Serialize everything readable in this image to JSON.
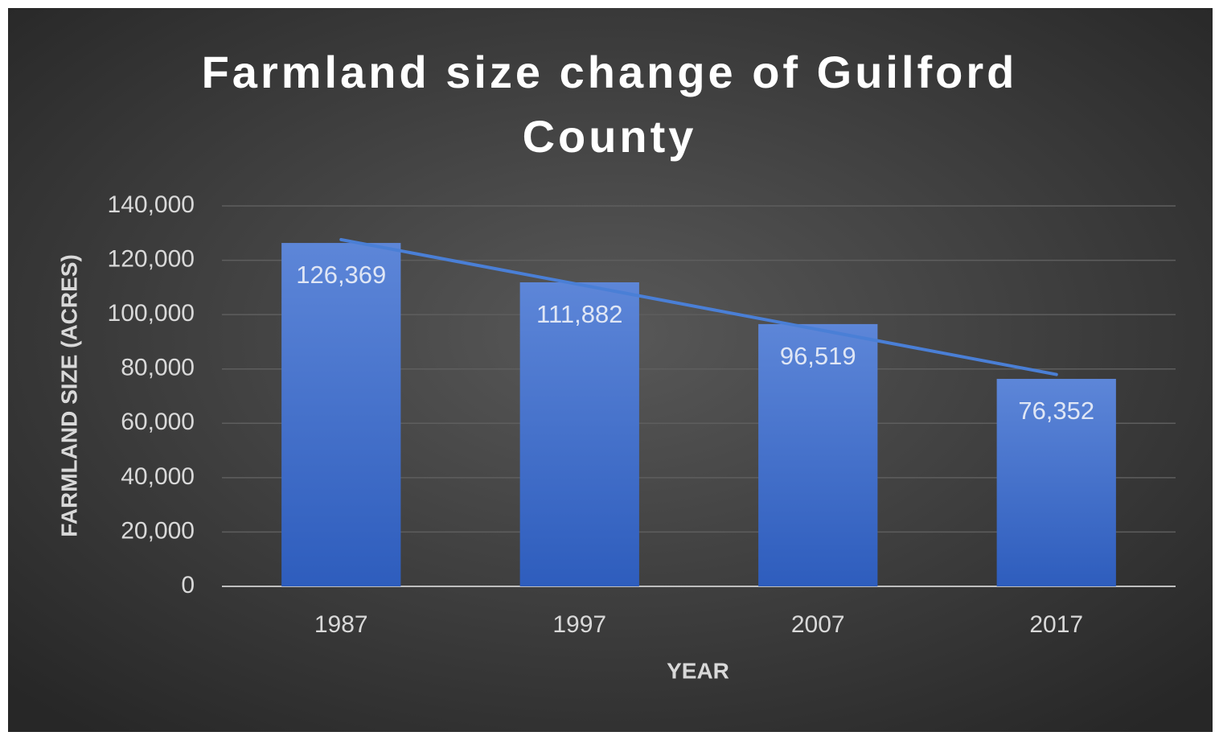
{
  "chart_data": {
    "type": "bar",
    "title": "Farmland size change of Guilford County",
    "x_label": "YEAR",
    "y_label": "FARMLAND SIZE (ACRES)",
    "categories": [
      "1987",
      "1997",
      "2007",
      "2017"
    ],
    "values": [
      126369,
      111882,
      96519,
      76352
    ],
    "value_labels": [
      "126,369",
      "111,882",
      "96,519",
      "76,352"
    ],
    "color": "#4472c4",
    "trendline": "linear",
    "trendline_color": "#4a7fd6",
    "ylim": [
      0,
      140000
    ],
    "yticks": [
      0,
      {
        "value": 20000,
        "label": "20,000"
      },
      {
        "value": 40000,
        "label": "40,000"
      },
      {
        "value": 60000,
        "label": "60,000"
      },
      {
        "value": 80000,
        "label": "80,000"
      },
      {
        "value": 100000,
        "label": "100,000"
      },
      {
        "value": 120000,
        "label": "120,000"
      },
      {
        "value": 140000,
        "label": "140,000"
      }
    ],
    "grid": true
  }
}
